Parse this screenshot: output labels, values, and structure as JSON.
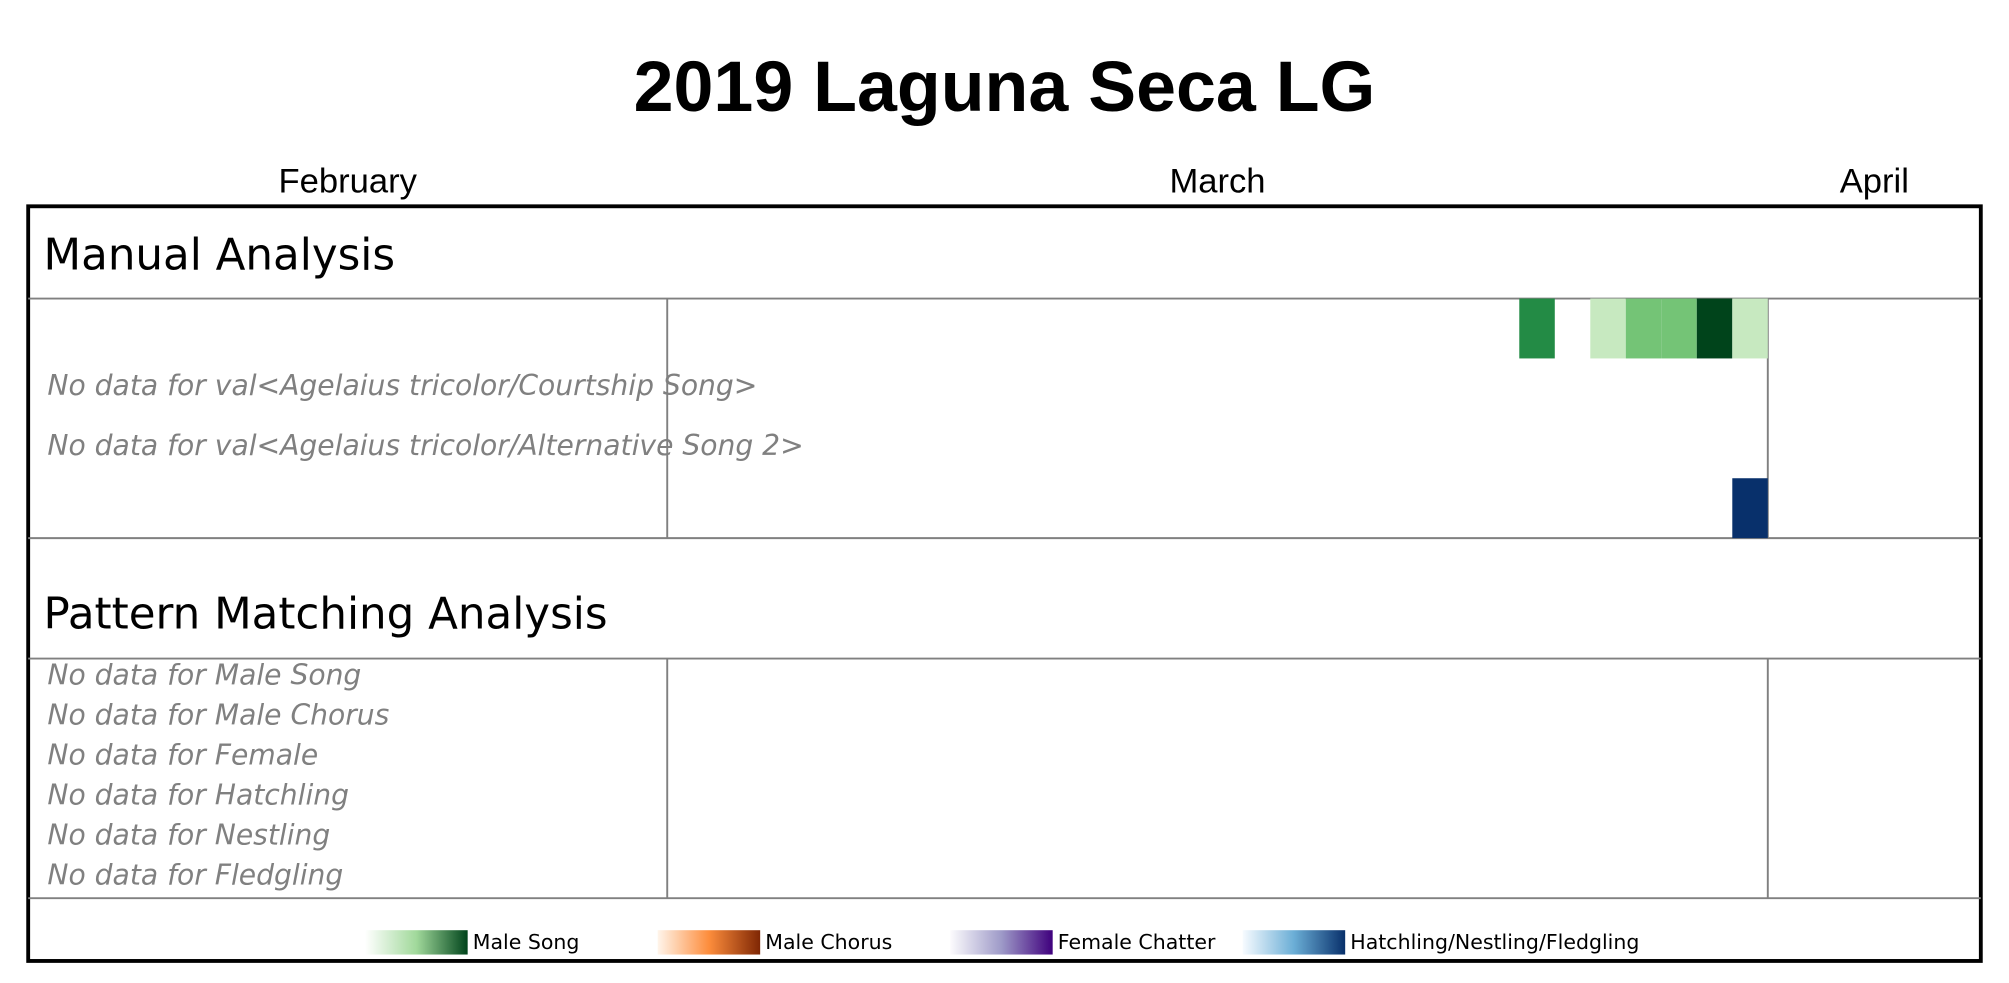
{
  "title": "2019 Laguna Seca LG",
  "months": [
    {
      "label": "February",
      "days": 18
    },
    {
      "label": "March",
      "days": 31
    },
    {
      "label": "April",
      "days": 6
    }
  ],
  "manual_analysis": {
    "title": "Manual Analysis",
    "messages": [
      "No data for val<Agelaius tricolor/Courtship Song>",
      "No data for val<Agelaius tricolor/Alternative Song 2>"
    ],
    "cells": [
      {
        "row": 0,
        "month": 1,
        "day": 25,
        "color": "#238b45"
      },
      {
        "row": 0,
        "month": 1,
        "day": 27,
        "color": "#c7e9c0"
      },
      {
        "row": 0,
        "month": 1,
        "day": 28,
        "color": "#74c476"
      },
      {
        "row": 0,
        "month": 1,
        "day": 29,
        "color": "#74c476"
      },
      {
        "row": 0,
        "month": 1,
        "day": 30,
        "color": "#00441b"
      },
      {
        "row": 0,
        "month": 1,
        "day": 31,
        "color": "#c7e9c0"
      },
      {
        "row": 3,
        "month": 1,
        "day": 31,
        "color": "#08306b"
      }
    ]
  },
  "pattern_matching_analysis": {
    "title": "Pattern Matching Analysis",
    "messages": [
      "No data for Male Song",
      "No data for Male Chorus",
      "No data for Female",
      "No data for Hatchling",
      "No data for Nestling",
      "No data for Fledgling"
    ]
  },
  "legend": [
    {
      "label": "Male Song",
      "colors": [
        "#ffffff",
        "#a1d99b",
        "#00441b"
      ]
    },
    {
      "label": "Male Chorus",
      "colors": [
        "#fff5eb",
        "#fd8d3c",
        "#7f2704"
      ]
    },
    {
      "label": "Female Chatter",
      "colors": [
        "#fcfbfd",
        "#9e9ac8",
        "#3f007d"
      ]
    },
    {
      "label": "Hatchling/Nestling/Fledgling",
      "colors": [
        "#f7fbff",
        "#6baed6",
        "#08306b"
      ]
    }
  ]
}
